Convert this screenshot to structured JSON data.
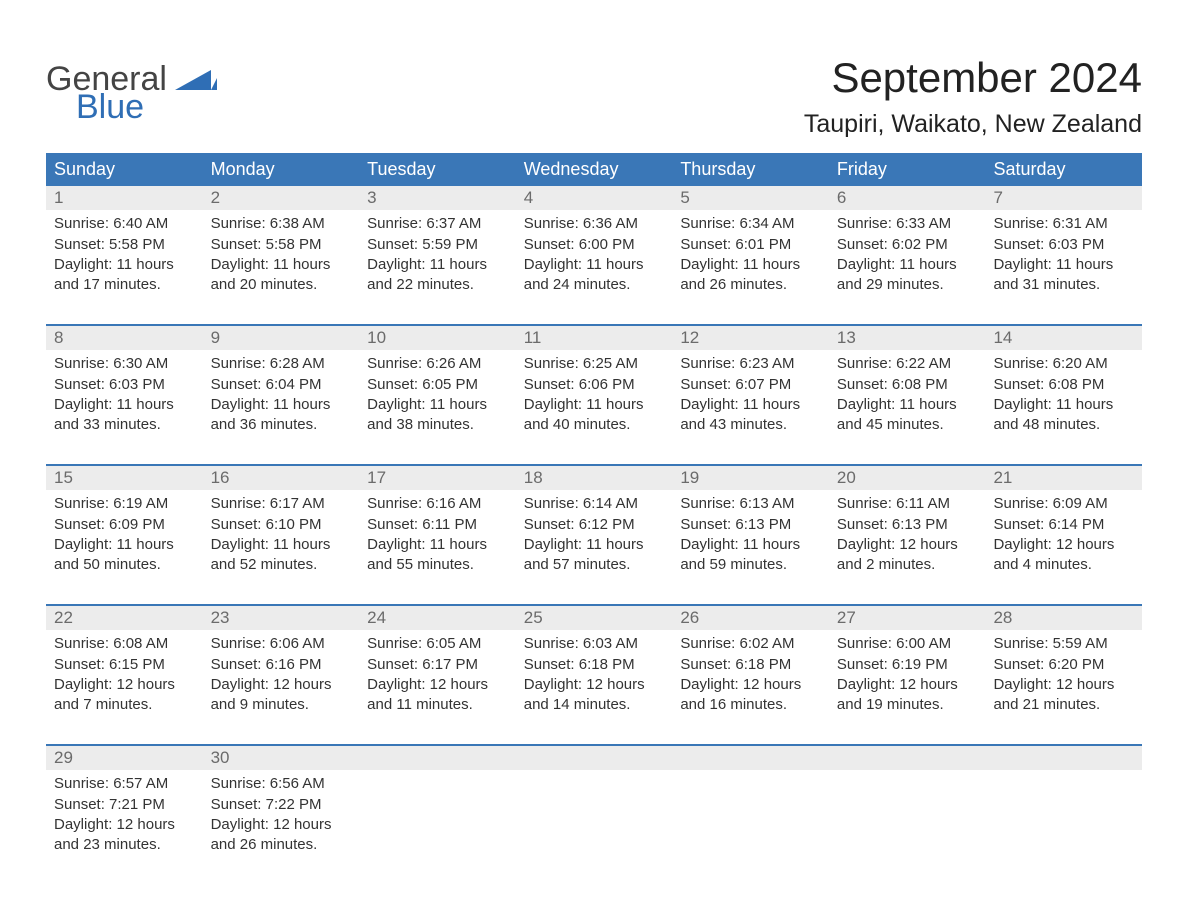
{
  "logo": {
    "word1": "General",
    "word2": "Blue"
  },
  "title": "September 2024",
  "location": "Taupiri, Waikato, New Zealand",
  "colors": {
    "header_bg": "#3a77b7",
    "header_text": "#ffffff",
    "daynum_bg": "#ececec",
    "daynum_text": "#6b6b6b",
    "body_text": "#333333",
    "rule": "#3a77b7",
    "logo_accent": "#2f6eb5"
  },
  "day_headers": [
    "Sunday",
    "Monday",
    "Tuesday",
    "Wednesday",
    "Thursday",
    "Friday",
    "Saturday"
  ],
  "weeks": [
    [
      {
        "n": "1",
        "sunrise": "Sunrise: 6:40 AM",
        "sunset": "Sunset: 5:58 PM",
        "d1": "Daylight: 11 hours",
        "d2": "and 17 minutes."
      },
      {
        "n": "2",
        "sunrise": "Sunrise: 6:38 AM",
        "sunset": "Sunset: 5:58 PM",
        "d1": "Daylight: 11 hours",
        "d2": "and 20 minutes."
      },
      {
        "n": "3",
        "sunrise": "Sunrise: 6:37 AM",
        "sunset": "Sunset: 5:59 PM",
        "d1": "Daylight: 11 hours",
        "d2": "and 22 minutes."
      },
      {
        "n": "4",
        "sunrise": "Sunrise: 6:36 AM",
        "sunset": "Sunset: 6:00 PM",
        "d1": "Daylight: 11 hours",
        "d2": "and 24 minutes."
      },
      {
        "n": "5",
        "sunrise": "Sunrise: 6:34 AM",
        "sunset": "Sunset: 6:01 PM",
        "d1": "Daylight: 11 hours",
        "d2": "and 26 minutes."
      },
      {
        "n": "6",
        "sunrise": "Sunrise: 6:33 AM",
        "sunset": "Sunset: 6:02 PM",
        "d1": "Daylight: 11 hours",
        "d2": "and 29 minutes."
      },
      {
        "n": "7",
        "sunrise": "Sunrise: 6:31 AM",
        "sunset": "Sunset: 6:03 PM",
        "d1": "Daylight: 11 hours",
        "d2": "and 31 minutes."
      }
    ],
    [
      {
        "n": "8",
        "sunrise": "Sunrise: 6:30 AM",
        "sunset": "Sunset: 6:03 PM",
        "d1": "Daylight: 11 hours",
        "d2": "and 33 minutes."
      },
      {
        "n": "9",
        "sunrise": "Sunrise: 6:28 AM",
        "sunset": "Sunset: 6:04 PM",
        "d1": "Daylight: 11 hours",
        "d2": "and 36 minutes."
      },
      {
        "n": "10",
        "sunrise": "Sunrise: 6:26 AM",
        "sunset": "Sunset: 6:05 PM",
        "d1": "Daylight: 11 hours",
        "d2": "and 38 minutes."
      },
      {
        "n": "11",
        "sunrise": "Sunrise: 6:25 AM",
        "sunset": "Sunset: 6:06 PM",
        "d1": "Daylight: 11 hours",
        "d2": "and 40 minutes."
      },
      {
        "n": "12",
        "sunrise": "Sunrise: 6:23 AM",
        "sunset": "Sunset: 6:07 PM",
        "d1": "Daylight: 11 hours",
        "d2": "and 43 minutes."
      },
      {
        "n": "13",
        "sunrise": "Sunrise: 6:22 AM",
        "sunset": "Sunset: 6:08 PM",
        "d1": "Daylight: 11 hours",
        "d2": "and 45 minutes."
      },
      {
        "n": "14",
        "sunrise": "Sunrise: 6:20 AM",
        "sunset": "Sunset: 6:08 PM",
        "d1": "Daylight: 11 hours",
        "d2": "and 48 minutes."
      }
    ],
    [
      {
        "n": "15",
        "sunrise": "Sunrise: 6:19 AM",
        "sunset": "Sunset: 6:09 PM",
        "d1": "Daylight: 11 hours",
        "d2": "and 50 minutes."
      },
      {
        "n": "16",
        "sunrise": "Sunrise: 6:17 AM",
        "sunset": "Sunset: 6:10 PM",
        "d1": "Daylight: 11 hours",
        "d2": "and 52 minutes."
      },
      {
        "n": "17",
        "sunrise": "Sunrise: 6:16 AM",
        "sunset": "Sunset: 6:11 PM",
        "d1": "Daylight: 11 hours",
        "d2": "and 55 minutes."
      },
      {
        "n": "18",
        "sunrise": "Sunrise: 6:14 AM",
        "sunset": "Sunset: 6:12 PM",
        "d1": "Daylight: 11 hours",
        "d2": "and 57 minutes."
      },
      {
        "n": "19",
        "sunrise": "Sunrise: 6:13 AM",
        "sunset": "Sunset: 6:13 PM",
        "d1": "Daylight: 11 hours",
        "d2": "and 59 minutes."
      },
      {
        "n": "20",
        "sunrise": "Sunrise: 6:11 AM",
        "sunset": "Sunset: 6:13 PM",
        "d1": "Daylight: 12 hours",
        "d2": "and 2 minutes."
      },
      {
        "n": "21",
        "sunrise": "Sunrise: 6:09 AM",
        "sunset": "Sunset: 6:14 PM",
        "d1": "Daylight: 12 hours",
        "d2": "and 4 minutes."
      }
    ],
    [
      {
        "n": "22",
        "sunrise": "Sunrise: 6:08 AM",
        "sunset": "Sunset: 6:15 PM",
        "d1": "Daylight: 12 hours",
        "d2": "and 7 minutes."
      },
      {
        "n": "23",
        "sunrise": "Sunrise: 6:06 AM",
        "sunset": "Sunset: 6:16 PM",
        "d1": "Daylight: 12 hours",
        "d2": "and 9 minutes."
      },
      {
        "n": "24",
        "sunrise": "Sunrise: 6:05 AM",
        "sunset": "Sunset: 6:17 PM",
        "d1": "Daylight: 12 hours",
        "d2": "and 11 minutes."
      },
      {
        "n": "25",
        "sunrise": "Sunrise: 6:03 AM",
        "sunset": "Sunset: 6:18 PM",
        "d1": "Daylight: 12 hours",
        "d2": "and 14 minutes."
      },
      {
        "n": "26",
        "sunrise": "Sunrise: 6:02 AM",
        "sunset": "Sunset: 6:18 PM",
        "d1": "Daylight: 12 hours",
        "d2": "and 16 minutes."
      },
      {
        "n": "27",
        "sunrise": "Sunrise: 6:00 AM",
        "sunset": "Sunset: 6:19 PM",
        "d1": "Daylight: 12 hours",
        "d2": "and 19 minutes."
      },
      {
        "n": "28",
        "sunrise": "Sunrise: 5:59 AM",
        "sunset": "Sunset: 6:20 PM",
        "d1": "Daylight: 12 hours",
        "d2": "and 21 minutes."
      }
    ],
    [
      {
        "n": "29",
        "sunrise": "Sunrise: 6:57 AM",
        "sunset": "Sunset: 7:21 PM",
        "d1": "Daylight: 12 hours",
        "d2": "and 23 minutes."
      },
      {
        "n": "30",
        "sunrise": "Sunrise: 6:56 AM",
        "sunset": "Sunset: 7:22 PM",
        "d1": "Daylight: 12 hours",
        "d2": "and 26 minutes."
      },
      {
        "n": "",
        "empty": true
      },
      {
        "n": "",
        "empty": true
      },
      {
        "n": "",
        "empty": true
      },
      {
        "n": "",
        "empty": true
      },
      {
        "n": "",
        "empty": true
      }
    ]
  ]
}
